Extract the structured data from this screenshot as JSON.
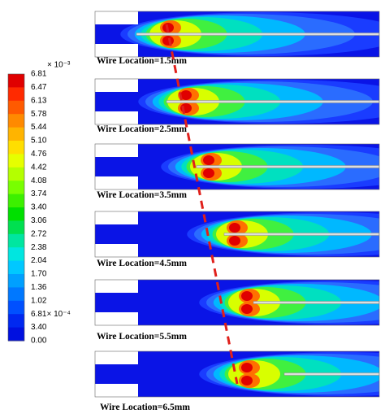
{
  "colorbar": {
    "multiplier": "× 10⁻³",
    "labels": [
      "6.81",
      "6.47",
      "6.13",
      "5.78",
      "5.44",
      "5.10",
      "4.76",
      "4.42",
      "4.08",
      "3.74",
      "3.40",
      "3.06",
      "2.72",
      "2.38",
      "2.04",
      "1.70",
      "1.36",
      "1.02",
      "6.81× 10⁻⁴",
      "3.40",
      "0.00"
    ]
  },
  "panels": [
    {
      "caption": "Wire Location=1.5mm"
    },
    {
      "caption": "Wire Location=2.5mm"
    },
    {
      "caption": "Wire Location=3.5mm"
    },
    {
      "caption": "Wire Location=4.5mm"
    },
    {
      "caption": "Wire Location=5.5mm"
    },
    {
      "caption": "Wire Location=6.5mm"
    }
  ]
}
